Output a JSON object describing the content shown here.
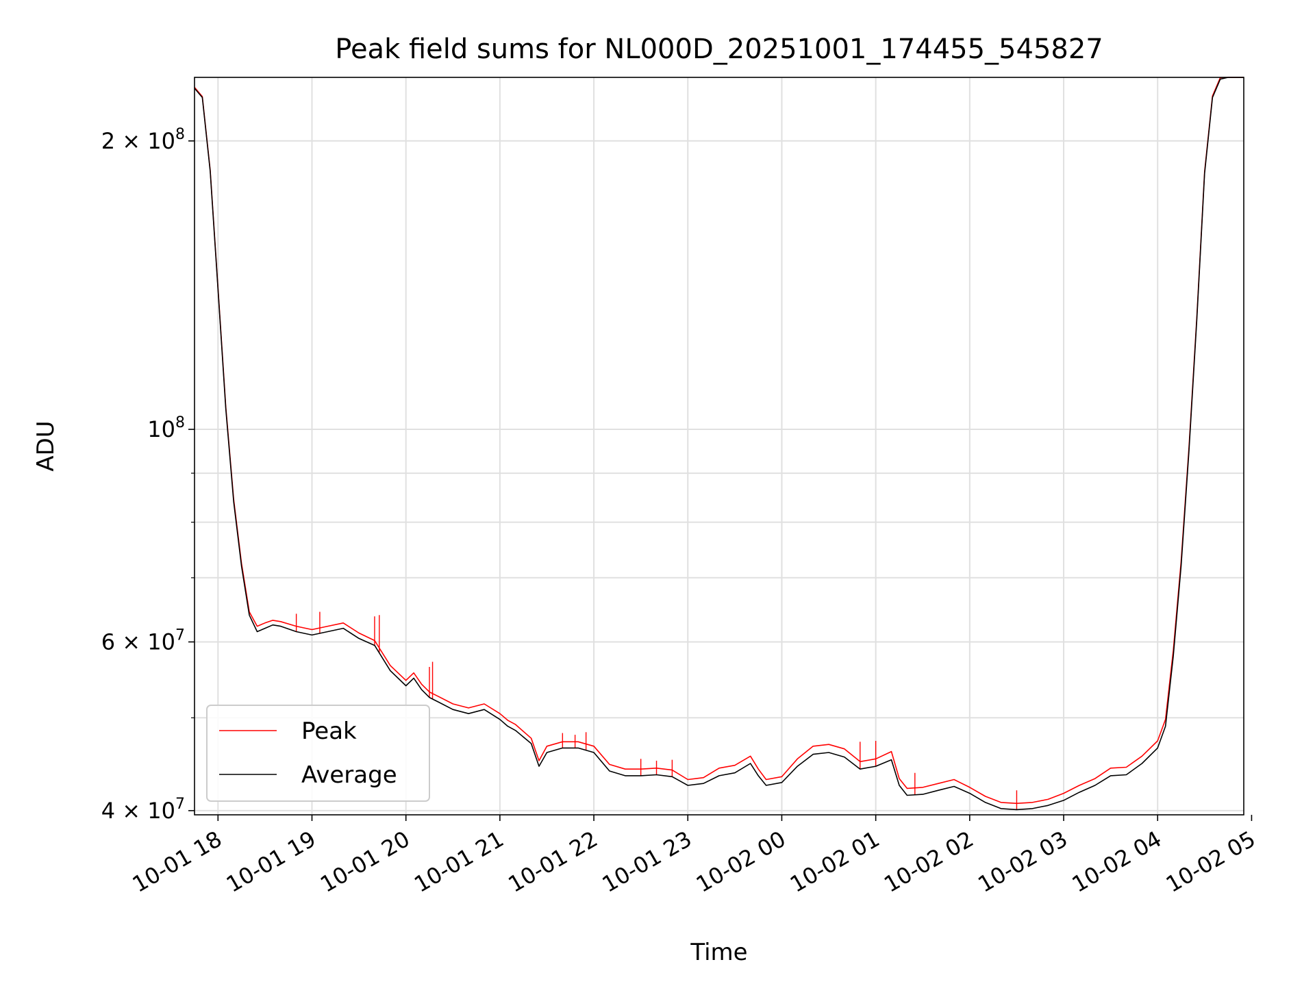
{
  "chart_data": {
    "type": "line",
    "title": "Peak field sums for NL000D_20251001_174455_545827",
    "xlabel": "Time",
    "ylabel": "ADU",
    "yscale": "log",
    "xlim": [
      "2025-10-01 17:45",
      "2025-10-02 04:55"
    ],
    "ylim": [
      39600000,
      233000000
    ],
    "grid": true,
    "legend": {
      "placement": "lower-left",
      "entries": [
        "Peak",
        "Average"
      ]
    },
    "colors": {
      "Peak": "#ff0000",
      "Average": "#000000",
      "grid": "#e0e0e0"
    },
    "x_ticks": [
      {
        "t": "2025-10-01 18:00",
        "label": "10-01 18"
      },
      {
        "t": "2025-10-01 19:00",
        "label": "10-01 19"
      },
      {
        "t": "2025-10-01 20:00",
        "label": "10-01 20"
      },
      {
        "t": "2025-10-01 21:00",
        "label": "10-01 21"
      },
      {
        "t": "2025-10-01 22:00",
        "label": "10-01 22"
      },
      {
        "t": "2025-10-01 23:00",
        "label": "10-01 23"
      },
      {
        "t": "2025-10-02 00:00",
        "label": "10-02 00"
      },
      {
        "t": "2025-10-02 01:00",
        "label": "10-02 01"
      },
      {
        "t": "2025-10-02 02:00",
        "label": "10-02 02"
      },
      {
        "t": "2025-10-02 03:00",
        "label": "10-02 03"
      },
      {
        "t": "2025-10-02 04:00",
        "label": "10-02 04"
      },
      {
        "t": "2025-10-02 05:00",
        "label": "10-02 05"
      }
    ],
    "y_major_ticks": [
      {
        "value": 40000000,
        "mantissa": "4",
        "exp": "7"
      },
      {
        "value": 60000000,
        "mantissa": "6",
        "exp": "7"
      },
      {
        "value": 100000000,
        "mantissa": "",
        "exp": "8"
      },
      {
        "value": 200000000,
        "mantissa": "2",
        "exp": "8"
      }
    ],
    "y_minor_ticks": [
      50000000,
      70000000,
      80000000,
      90000000
    ],
    "series": [
      {
        "name": "Average",
        "x": [
          "2025-10-01 17:45",
          "2025-10-01 17:50",
          "2025-10-01 17:55",
          "2025-10-01 18:00",
          "2025-10-01 18:05",
          "2025-10-01 18:10",
          "2025-10-01 18:15",
          "2025-10-01 18:20",
          "2025-10-01 18:25",
          "2025-10-01 18:30",
          "2025-10-01 18:35",
          "2025-10-01 18:40",
          "2025-10-01 18:50",
          "2025-10-01 19:00",
          "2025-10-01 19:10",
          "2025-10-01 19:20",
          "2025-10-01 19:30",
          "2025-10-01 19:40",
          "2025-10-01 19:50",
          "2025-10-01 20:00",
          "2025-10-01 20:05",
          "2025-10-01 20:10",
          "2025-10-01 20:15",
          "2025-10-01 20:20",
          "2025-10-01 20:30",
          "2025-10-01 20:40",
          "2025-10-01 20:50",
          "2025-10-01 21:00",
          "2025-10-01 21:05",
          "2025-10-01 21:10",
          "2025-10-01 21:20",
          "2025-10-01 21:25",
          "2025-10-01 21:30",
          "2025-10-01 21:40",
          "2025-10-01 21:50",
          "2025-10-01 22:00",
          "2025-10-01 22:10",
          "2025-10-01 22:20",
          "2025-10-01 22:30",
          "2025-10-01 22:40",
          "2025-10-01 22:50",
          "2025-10-01 23:00",
          "2025-10-01 23:10",
          "2025-10-01 23:20",
          "2025-10-01 23:30",
          "2025-10-01 23:40",
          "2025-10-01 23:45",
          "2025-10-01 23:50",
          "2025-10-02 00:00",
          "2025-10-02 00:10",
          "2025-10-02 00:20",
          "2025-10-02 00:30",
          "2025-10-02 00:40",
          "2025-10-02 00:50",
          "2025-10-02 01:00",
          "2025-10-02 01:10",
          "2025-10-02 01:15",
          "2025-10-02 01:20",
          "2025-10-02 01:30",
          "2025-10-02 01:40",
          "2025-10-02 01:50",
          "2025-10-02 02:00",
          "2025-10-02 02:10",
          "2025-10-02 02:20",
          "2025-10-02 02:30",
          "2025-10-02 02:40",
          "2025-10-02 02:50",
          "2025-10-02 03:00",
          "2025-10-02 03:10",
          "2025-10-02 03:20",
          "2025-10-02 03:30",
          "2025-10-02 03:40",
          "2025-10-02 03:50",
          "2025-10-02 04:00",
          "2025-10-02 04:05",
          "2025-10-02 04:10",
          "2025-10-02 04:15",
          "2025-10-02 04:20",
          "2025-10-02 04:25",
          "2025-10-02 04:30",
          "2025-10-02 04:35",
          "2025-10-02 04:40",
          "2025-10-02 04:45",
          "2025-10-02 04:50",
          "2025-10-02 04:55"
        ],
        "values": [
          227000000,
          222000000,
          186000000,
          140000000,
          105000000,
          84000000,
          72000000,
          64000000,
          61500000,
          62000000,
          62500000,
          62300000,
          61500000,
          61000000,
          61500000,
          62000000,
          60500000,
          59500000,
          56000000,
          54000000,
          55000000,
          53500000,
          52500000,
          52000000,
          51000000,
          50500000,
          51000000,
          49800000,
          49000000,
          48500000,
          47000000,
          44500000,
          46000000,
          46500000,
          46500000,
          46000000,
          44000000,
          43500000,
          43500000,
          43600000,
          43400000,
          42500000,
          42700000,
          43500000,
          43800000,
          44800000,
          43500000,
          42500000,
          42800000,
          44500000,
          45800000,
          46000000,
          45500000,
          44200000,
          44500000,
          45200000,
          42500000,
          41500000,
          41600000,
          42000000,
          42400000,
          41700000,
          40800000,
          40200000,
          40100000,
          40200000,
          40500000,
          41000000,
          41800000,
          42500000,
          43500000,
          43600000,
          44800000,
          46500000,
          49000000,
          58000000,
          72000000,
          95000000,
          130000000,
          185000000,
          222000000,
          232000000,
          233000000,
          233000000,
          233000000
        ]
      },
      {
        "name": "Peak",
        "x": [
          "2025-10-01 17:45",
          "2025-10-01 17:50",
          "2025-10-01 17:55",
          "2025-10-01 18:00",
          "2025-10-01 18:05",
          "2025-10-01 18:10",
          "2025-10-01 18:15",
          "2025-10-01 18:20",
          "2025-10-01 18:25",
          "2025-10-01 18:30",
          "2025-10-01 18:35",
          "2025-10-01 18:40",
          "2025-10-01 18:50",
          "2025-10-01 19:00",
          "2025-10-01 19:10",
          "2025-10-01 19:20",
          "2025-10-01 19:30",
          "2025-10-01 19:40",
          "2025-10-01 19:50",
          "2025-10-01 20:00",
          "2025-10-01 20:05",
          "2025-10-01 20:10",
          "2025-10-01 20:15",
          "2025-10-01 20:20",
          "2025-10-01 20:30",
          "2025-10-01 20:40",
          "2025-10-01 20:50",
          "2025-10-01 21:00",
          "2025-10-01 21:05",
          "2025-10-01 21:10",
          "2025-10-01 21:20",
          "2025-10-01 21:25",
          "2025-10-01 21:30",
          "2025-10-01 21:40",
          "2025-10-01 21:50",
          "2025-10-01 22:00",
          "2025-10-01 22:10",
          "2025-10-01 22:20",
          "2025-10-01 22:30",
          "2025-10-01 22:40",
          "2025-10-01 22:50",
          "2025-10-01 23:00",
          "2025-10-01 23:10",
          "2025-10-01 23:20",
          "2025-10-01 23:30",
          "2025-10-01 23:40",
          "2025-10-01 23:45",
          "2025-10-01 23:50",
          "2025-10-02 00:00",
          "2025-10-02 00:10",
          "2025-10-02 00:20",
          "2025-10-02 00:30",
          "2025-10-02 00:40",
          "2025-10-02 00:50",
          "2025-10-02 01:00",
          "2025-10-02 01:10",
          "2025-10-02 01:15",
          "2025-10-02 01:20",
          "2025-10-02 01:30",
          "2025-10-02 01:40",
          "2025-10-02 01:50",
          "2025-10-02 02:00",
          "2025-10-02 02:10",
          "2025-10-02 02:20",
          "2025-10-02 02:30",
          "2025-10-02 02:40",
          "2025-10-02 02:50",
          "2025-10-02 03:00",
          "2025-10-02 03:10",
          "2025-10-02 03:20",
          "2025-10-02 03:30",
          "2025-10-02 03:40",
          "2025-10-02 03:50",
          "2025-10-02 04:00",
          "2025-10-02 04:05",
          "2025-10-02 04:10",
          "2025-10-02 04:15",
          "2025-10-02 04:20",
          "2025-10-02 04:25",
          "2025-10-02 04:30",
          "2025-10-02 04:35",
          "2025-10-02 04:40",
          "2025-10-02 04:45",
          "2025-10-02 04:50",
          "2025-10-02 04:55"
        ],
        "values": [
          227500000,
          222500000,
          186500000,
          140500000,
          105500000,
          84500000,
          72500000,
          64500000,
          62300000,
          62800000,
          63200000,
          63000000,
          62300000,
          61800000,
          62300000,
          62800000,
          61300000,
          60200000,
          56700000,
          54700000,
          55700000,
          54200000,
          53200000,
          52700000,
          51700000,
          51200000,
          51700000,
          50500000,
          49700000,
          49200000,
          47600000,
          45100000,
          46700000,
          47200000,
          47200000,
          46700000,
          44700000,
          44200000,
          44200000,
          44300000,
          44100000,
          43100000,
          43300000,
          44300000,
          44600000,
          45600000,
          44200000,
          43100000,
          43400000,
          45300000,
          46700000,
          46900000,
          46400000,
          45000000,
          45300000,
          46100000,
          43200000,
          42200000,
          42300000,
          42700000,
          43100000,
          42300000,
          41400000,
          40800000,
          40700000,
          40800000,
          41100000,
          41700000,
          42500000,
          43200000,
          44300000,
          44400000,
          45600000,
          47300000,
          49800000,
          58800000,
          72800000,
          95800000,
          130800000,
          185800000,
          222800000,
          232800000,
          233000000,
          233000000,
          233000000
        ]
      }
    ],
    "peak_spikes": [
      {
        "x": "2025-10-01 18:50",
        "y": 64200000
      },
      {
        "x": "2025-10-01 19:05",
        "y": 64500000
      },
      {
        "x": "2025-10-01 19:40",
        "y": 63800000
      },
      {
        "x": "2025-10-01 19:43",
        "y": 64000000
      },
      {
        "x": "2025-10-01 20:15",
        "y": 56500000
      },
      {
        "x": "2025-10-01 20:17",
        "y": 57200000
      },
      {
        "x": "2025-10-01 21:40",
        "y": 48200000
      },
      {
        "x": "2025-10-01 21:48",
        "y": 48000000
      },
      {
        "x": "2025-10-01 21:55",
        "y": 48300000
      },
      {
        "x": "2025-10-01 22:30",
        "y": 45300000
      },
      {
        "x": "2025-10-01 22:40",
        "y": 45100000
      },
      {
        "x": "2025-10-01 22:50",
        "y": 45200000
      },
      {
        "x": "2025-10-02 00:50",
        "y": 47200000
      },
      {
        "x": "2025-10-02 01:00",
        "y": 47300000
      },
      {
        "x": "2025-10-02 01:25",
        "y": 43800000
      },
      {
        "x": "2025-10-02 02:30",
        "y": 42000000
      }
    ]
  }
}
